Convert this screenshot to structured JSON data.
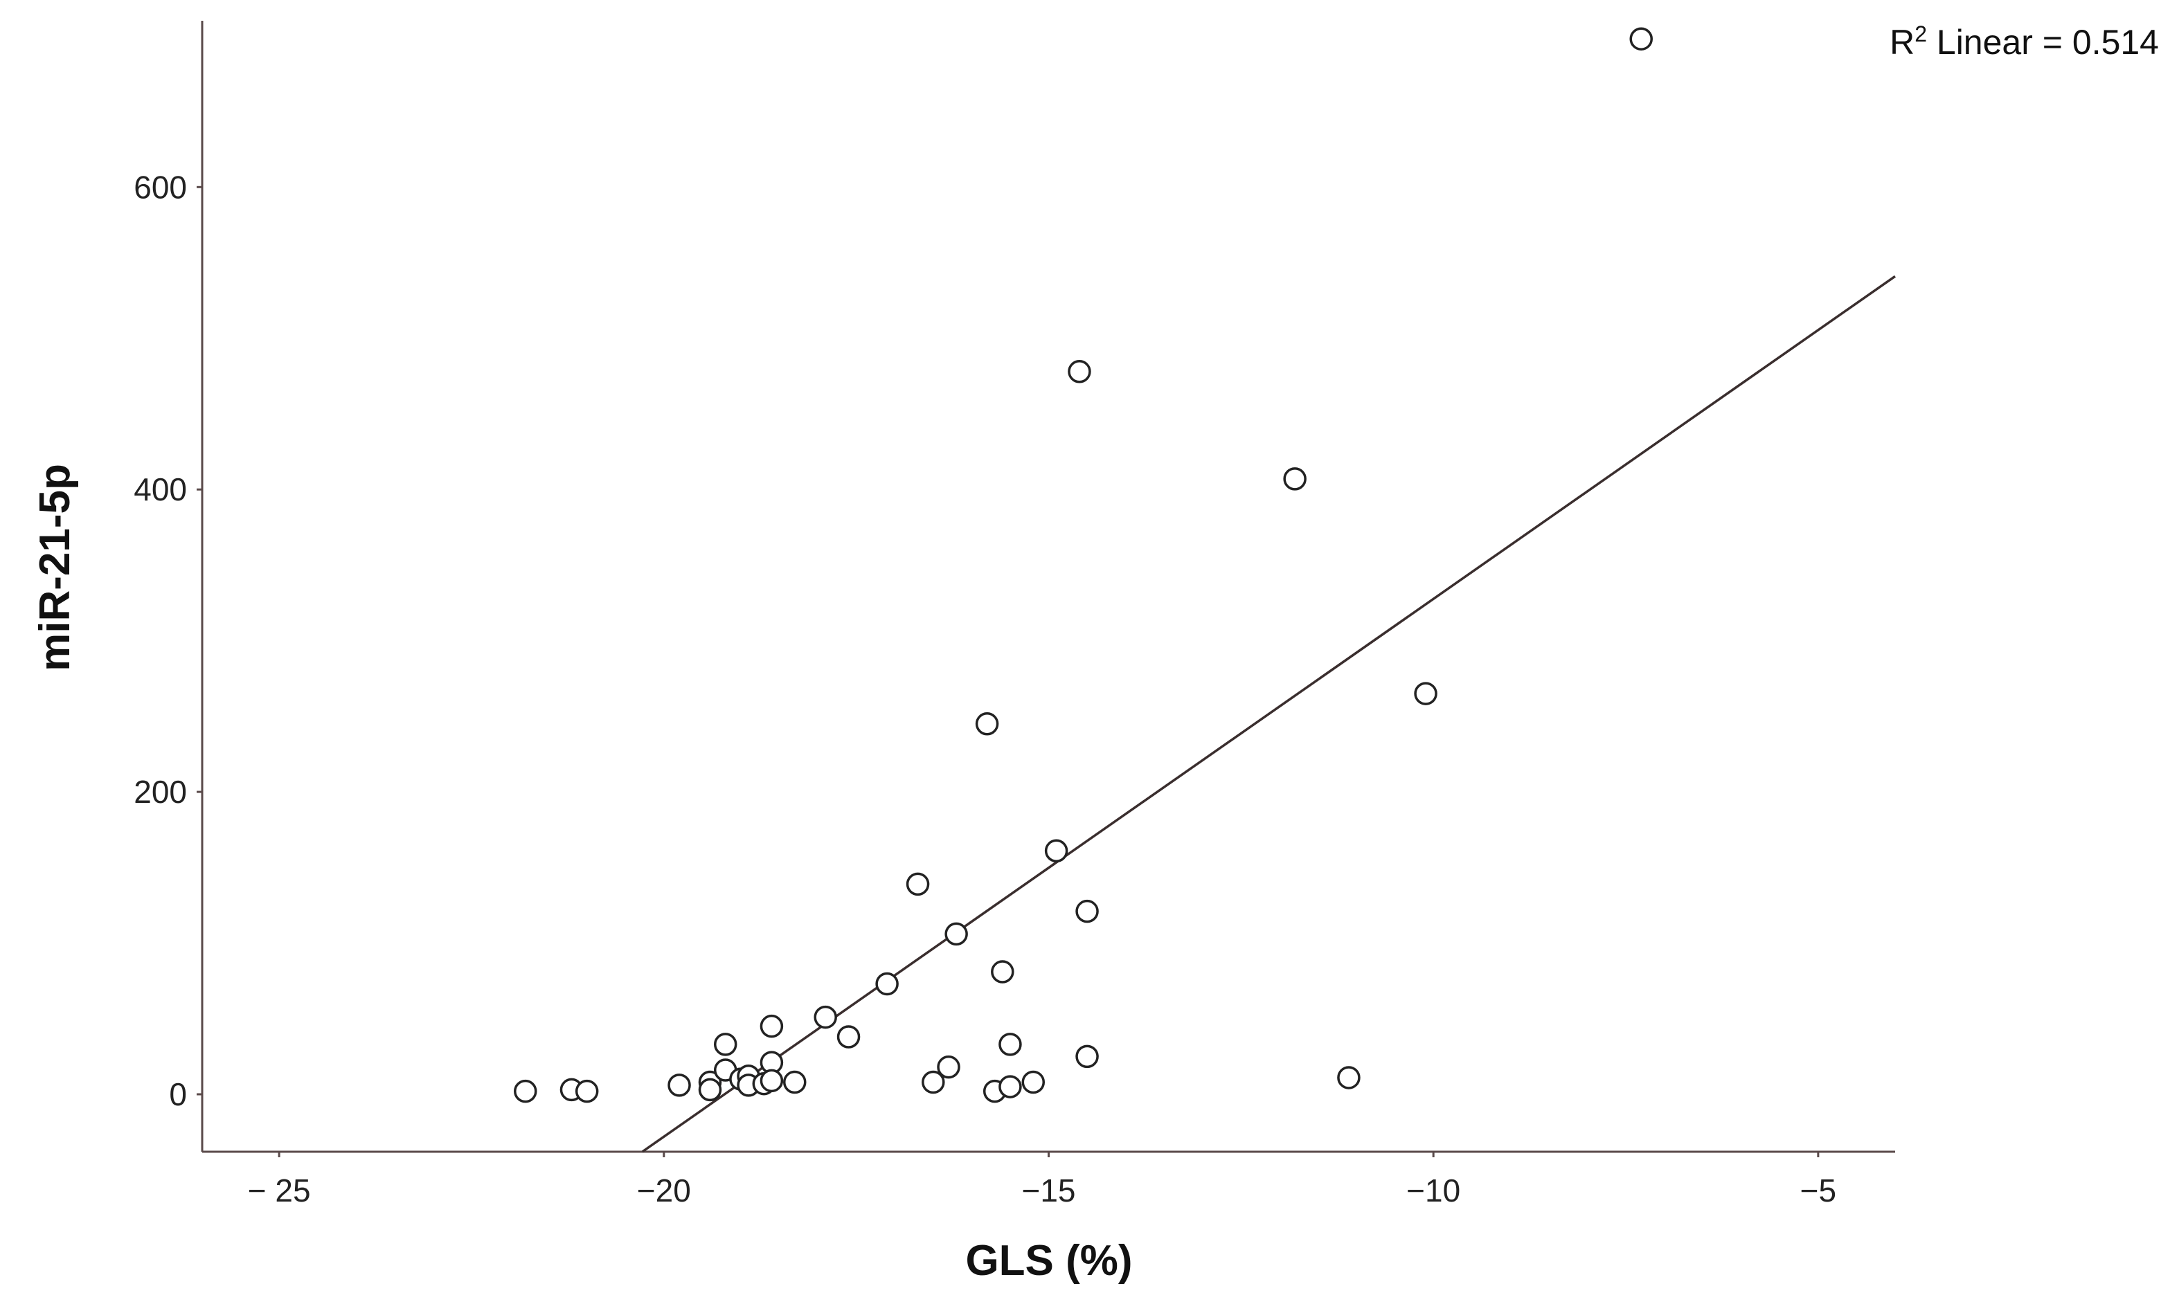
{
  "chart_data": {
    "type": "scatter",
    "xlabel": "GLS (%)",
    "ylabel": "miR-21-5p",
    "annotation": {
      "r2_prefix": "R",
      "r2_sup": "2",
      "r2_text": " Linear = 0.514"
    },
    "xlim": [
      -26,
      -4
    ],
    "ylim": [
      -38,
      710
    ],
    "xticks": [
      -25,
      -20,
      -15,
      -10,
      -5
    ],
    "xtick_labels": [
      "− 25",
      "−20",
      "−15",
      "−10",
      "−5"
    ],
    "yticks": [
      0,
      200,
      400,
      600
    ],
    "ytick_labels": [
      "0",
      "200",
      "400",
      "600"
    ],
    "grid": false,
    "points": [
      {
        "x": -21.8,
        "y": 2
      },
      {
        "x": -21.2,
        "y": 3
      },
      {
        "x": -21.0,
        "y": 2
      },
      {
        "x": -19.8,
        "y": 6
      },
      {
        "x": -19.4,
        "y": 8
      },
      {
        "x": -19.4,
        "y": 3
      },
      {
        "x": -19.2,
        "y": 33
      },
      {
        "x": -19.2,
        "y": 16
      },
      {
        "x": -19.0,
        "y": 10
      },
      {
        "x": -18.9,
        "y": 12
      },
      {
        "x": -18.9,
        "y": 6
      },
      {
        "x": -18.7,
        "y": 7
      },
      {
        "x": -18.6,
        "y": 45
      },
      {
        "x": -18.6,
        "y": 21
      },
      {
        "x": -18.6,
        "y": 9
      },
      {
        "x": -18.3,
        "y": 8
      },
      {
        "x": -17.9,
        "y": 51
      },
      {
        "x": -17.6,
        "y": 38
      },
      {
        "x": -17.1,
        "y": 73
      },
      {
        "x": -16.7,
        "y": 139
      },
      {
        "x": -16.5,
        "y": 8
      },
      {
        "x": -16.3,
        "y": 18
      },
      {
        "x": -16.2,
        "y": 106
      },
      {
        "x": -15.8,
        "y": 245
      },
      {
        "x": -15.7,
        "y": 2
      },
      {
        "x": -15.6,
        "y": 81
      },
      {
        "x": -15.5,
        "y": 33
      },
      {
        "x": -15.5,
        "y": 5
      },
      {
        "x": -15.2,
        "y": 8
      },
      {
        "x": -14.9,
        "y": 161
      },
      {
        "x": -14.6,
        "y": 478
      },
      {
        "x": -14.5,
        "y": 121
      },
      {
        "x": -14.5,
        "y": 25
      },
      {
        "x": -11.8,
        "y": 407
      },
      {
        "x": -11.1,
        "y": 11
      },
      {
        "x": -10.1,
        "y": 265
      },
      {
        "x": -7.3,
        "y": 698
      }
    ],
    "fit_line": {
      "x1": -20.28,
      "y1": -38,
      "x2": -4,
      "y2": 541
    }
  }
}
